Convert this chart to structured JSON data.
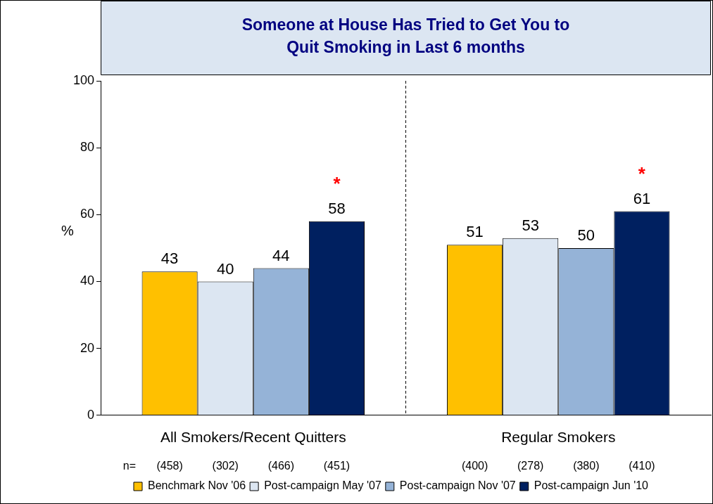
{
  "chart_data": {
    "type": "bar",
    "title": "Someone at House Has Tried to Get You to Quit Smoking in Last 6 months",
    "ylabel": "%",
    "categories": [
      "All Smokers/Recent Quitters",
      "Regular Smokers"
    ],
    "series": [
      {
        "name": "Benchmark Nov '06",
        "color": "#ffc000",
        "values": [
          43,
          51
        ]
      },
      {
        "name": "Post-campaign May '07",
        "color": "#dce6f2",
        "values": [
          40,
          53
        ]
      },
      {
        "name": "Post-campaign Nov '07",
        "color": "#95b3d7",
        "values": [
          44,
          50
        ]
      },
      {
        "name": "Post-campaign Jun '10",
        "color": "#002060",
        "values": [
          58,
          61
        ]
      }
    ],
    "ylim": [
      0,
      100
    ],
    "yticks": [
      0,
      20,
      40,
      60,
      80,
      100
    ],
    "grid": false,
    "legend": "bottom",
    "data_labels": true,
    "annotations": [
      "*",
      "*",
      "n=",
      "(458)",
      "(302)",
      "(466)",
      "(451)",
      "(400)",
      "(278)",
      "(380)",
      "(410)"
    ]
  }
}
